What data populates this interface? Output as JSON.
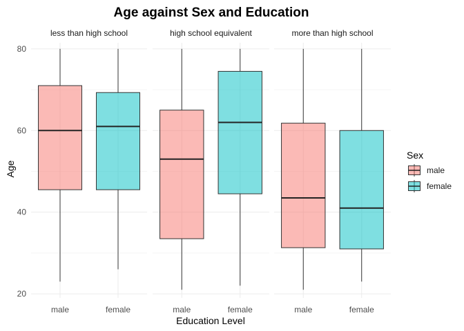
{
  "chart_data": {
    "type": "box",
    "title": "Age against Sex and Education",
    "xlabel": "Education Level",
    "ylabel": "Age",
    "ylim": [
      19,
      81.5
    ],
    "yticks": [
      20,
      40,
      60,
      80
    ],
    "panels": [
      {
        "label": "less than high school",
        "boxes": [
          {
            "category": "male",
            "min": 23,
            "q1": 45.5,
            "median": 60,
            "q3": 71,
            "max": 80
          },
          {
            "category": "female",
            "min": 26,
            "q1": 45.5,
            "median": 61,
            "q3": 69.3,
            "max": 80
          }
        ]
      },
      {
        "label": "high school equivalent",
        "boxes": [
          {
            "category": "male",
            "min": 21,
            "q1": 33.5,
            "median": 53,
            "q3": 65,
            "max": 80
          },
          {
            "category": "female",
            "min": 22,
            "q1": 44.5,
            "median": 62,
            "q3": 74.5,
            "max": 80
          }
        ]
      },
      {
        "label": "more than high school",
        "boxes": [
          {
            "category": "male",
            "min": 21,
            "q1": 31.3,
            "median": 43.5,
            "q3": 61.8,
            "max": 80
          },
          {
            "category": "female",
            "min": 23,
            "q1": 31,
            "median": 41,
            "q3": 60,
            "max": 80
          }
        ]
      }
    ],
    "legend": {
      "title": "Sex",
      "position": "right",
      "entries": [
        {
          "label": "male",
          "color": "#F8766D"
        },
        {
          "label": "female",
          "color": "#00BFC4"
        }
      ]
    },
    "grid": true
  }
}
